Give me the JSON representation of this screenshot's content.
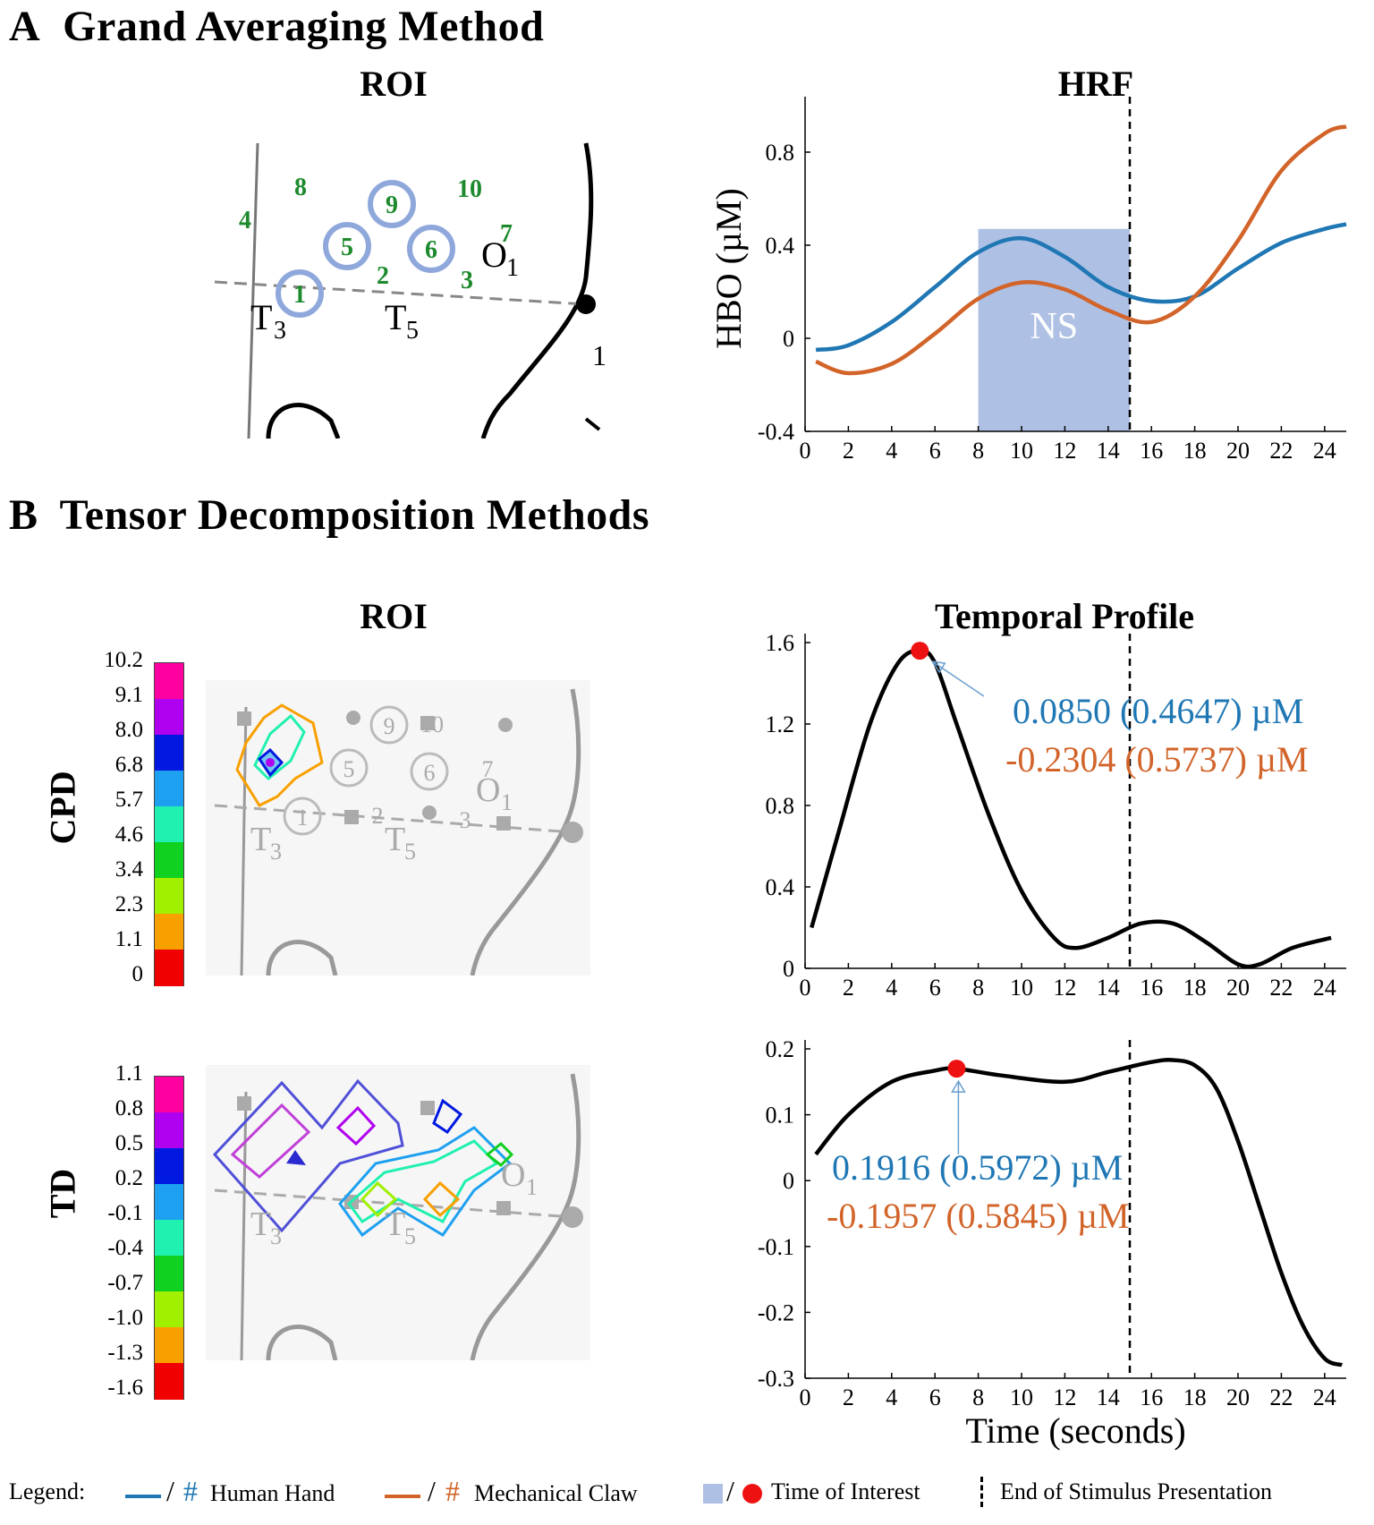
{
  "sectionA": {
    "letter": "A",
    "title": "Grand Averaging Method"
  },
  "sectionB": {
    "letter": "B",
    "title": "Tensor Decomposition Methods"
  },
  "roiA": {
    "title": "ROI",
    "channels": [
      "1",
      "2",
      "3",
      "4",
      "5",
      "6",
      "7",
      "8",
      "9",
      "10"
    ],
    "landmarks": [
      "T",
      "3",
      "T",
      "5",
      "O",
      "1",
      "1"
    ]
  },
  "roiB": {
    "title": "ROI"
  },
  "cpd": {
    "label": "CPD",
    "colorbar": [
      "10.2",
      "9.1",
      "8.0",
      "6.8",
      "5.7",
      "4.6",
      "3.4",
      "2.3",
      "1.1",
      "0"
    ]
  },
  "td": {
    "label": "TD",
    "colorbar": [
      "1.1",
      "0.8",
      "0.5",
      "0.2",
      "-0.1",
      "-0.4",
      "-0.7",
      "-1.0",
      "-1.3",
      "-1.6"
    ]
  },
  "colors": {
    "human_hand": "#1f77b4",
    "mechanical_claw": "#d2642a",
    "time_of_interest": "#aec0e4",
    "marker": "#ee1111",
    "colorbar": [
      "#ff00a0",
      "#b000f0",
      "#0018e0",
      "#1ea0f0",
      "#20f0b0",
      "#10d020",
      "#a0f000",
      "#f8a000",
      "#f00000"
    ]
  },
  "chart_data": [
    {
      "type": "line",
      "title": "HRF",
      "xlabel": "",
      "ylabel": "HBO (µM)",
      "xlim": [
        0,
        25
      ],
      "ylim": [
        -0.4,
        1.0
      ],
      "xticks": [
        "0",
        "2",
        "4",
        "6",
        "8",
        "10",
        "12",
        "14",
        "16",
        "18",
        "20",
        "22",
        "24"
      ],
      "yticks": [
        "-0.4",
        "0",
        "0.4",
        "0.8"
      ],
      "series": [
        {
          "name": "Human Hand",
          "x": [
            0.5,
            2,
            4,
            6,
            8,
            10,
            12,
            14,
            16,
            18,
            20,
            22,
            24,
            25
          ],
          "y": [
            -0.05,
            -0.03,
            0.07,
            0.22,
            0.37,
            0.43,
            0.35,
            0.22,
            0.16,
            0.18,
            0.3,
            0.41,
            0.47,
            0.49
          ]
        },
        {
          "name": "Mechanical Claw",
          "x": [
            0.5,
            2,
            4,
            6,
            8,
            10,
            12,
            14,
            16,
            18,
            20,
            22,
            24,
            25
          ],
          "y": [
            -0.1,
            -0.15,
            -0.11,
            0.02,
            0.17,
            0.24,
            0.21,
            0.12,
            0.07,
            0.18,
            0.42,
            0.72,
            0.88,
            0.91
          ]
        }
      ],
      "highlight": {
        "label": "NS",
        "x0": 8,
        "x1": 15,
        "y0": -0.4,
        "y1": 0.47
      },
      "stimulus_end": 15
    },
    {
      "type": "line",
      "title": "Temporal Profile",
      "xlim": [
        0,
        25
      ],
      "ylim": [
        0,
        1.6
      ],
      "xticks": [
        "0",
        "2",
        "4",
        "6",
        "8",
        "10",
        "12",
        "14",
        "16",
        "18",
        "20",
        "22",
        "24"
      ],
      "yticks": [
        "0",
        "0.4",
        "0.8",
        "1.2",
        "1.6"
      ],
      "series": [
        {
          "name": "CPD temporal profile",
          "x": [
            0.3,
            1.5,
            3,
            4.3,
            5.3,
            6,
            7,
            8.5,
            10,
            11.5,
            12.5,
            14,
            15.5,
            17,
            18.5,
            20,
            21,
            22.5,
            24.3
          ],
          "y": [
            0.2,
            0.65,
            1.2,
            1.5,
            1.56,
            1.5,
            1.2,
            0.75,
            0.38,
            0.15,
            0.1,
            0.15,
            0.22,
            0.22,
            0.13,
            0.02,
            0.02,
            0.1,
            0.15
          ]
        }
      ],
      "marker": {
        "x": 5.3,
        "y": 1.56
      },
      "stimulus_end": 15,
      "annotations": [
        "0.0850 (0.4647) µM",
        "-0.2304 (0.5737) µM"
      ]
    },
    {
      "type": "line",
      "title": "",
      "xlabel": "Time (seconds)",
      "xlim": [
        0,
        25
      ],
      "ylim": [
        -0.3,
        0.2
      ],
      "xticks": [
        "0",
        "2",
        "4",
        "6",
        "8",
        "10",
        "12",
        "14",
        "16",
        "18",
        "20",
        "22",
        "24"
      ],
      "yticks": [
        "-0.3",
        "-0.2",
        "-0.1",
        "0",
        "0.1",
        "0.2"
      ],
      "series": [
        {
          "name": "TD temporal profile",
          "x": [
            0.5,
            2,
            4,
            6,
            7,
            9,
            12,
            14,
            16,
            17,
            18,
            19,
            20,
            21,
            22,
            23,
            24,
            24.8
          ],
          "y": [
            0.04,
            0.1,
            0.15,
            0.167,
            0.17,
            0.16,
            0.15,
            0.165,
            0.18,
            0.183,
            0.175,
            0.14,
            0.06,
            -0.04,
            -0.14,
            -0.22,
            -0.27,
            -0.28
          ]
        }
      ],
      "marker": {
        "x": 7,
        "y": 0.17
      },
      "stimulus_end": 15,
      "annotations": [
        "0.1916 (0.5972) µM",
        "-0.1957 (0.5845) µM"
      ]
    }
  ],
  "legend": {
    "title": "Legend:",
    "human_hand": "Human Hand",
    "mechanical_claw": "Mechanical Claw",
    "time_of_interest": "Time of Interest",
    "stimulus_end": "End of Stimulus Presentation",
    "hash": "#",
    "slash": "/"
  }
}
